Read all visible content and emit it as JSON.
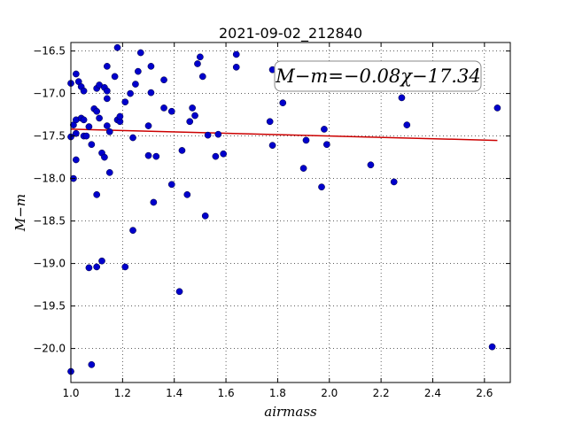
{
  "chart_data": {
    "type": "scatter",
    "title": "2021-09-02_212840",
    "xlabel": "airmass",
    "ylabel": "M−m",
    "annotation": "M−m=−0.08χ−17.34",
    "xlim": [
      1.0,
      2.7
    ],
    "ylim": [
      -20.4,
      -16.4
    ],
    "y_inverted": true,
    "grid": true,
    "x_ticks": [
      "1.0",
      "1.2",
      "1.4",
      "1.6",
      "1.8",
      "2.0",
      "2.2",
      "2.4",
      "2.6"
    ],
    "x_tick_values": [
      1.0,
      1.2,
      1.4,
      1.6,
      1.8,
      2.0,
      2.2,
      2.4,
      2.6
    ],
    "y_ticks": [
      "−16.5",
      "−17.0",
      "−17.5",
      "−18.0",
      "−18.5",
      "−19.0",
      "−19.5",
      "−20.0"
    ],
    "y_tick_values": [
      -16.5,
      -17.0,
      -17.5,
      -18.0,
      -18.5,
      -19.0,
      -19.5,
      -20.0
    ],
    "colors": {
      "points": "#0000cc",
      "fit": "#cc0000"
    },
    "fit": {
      "slope": -0.08,
      "intercept": -17.34,
      "x_range": [
        1.0,
        2.65
      ]
    },
    "points": [
      [
        1.0,
        -20.27
      ],
      [
        1.0,
        -17.51
      ],
      [
        1.0,
        -16.88
      ],
      [
        1.01,
        -17.37
      ],
      [
        1.01,
        -18.0
      ],
      [
        1.02,
        -17.31
      ],
      [
        1.02,
        -17.78
      ],
      [
        1.02,
        -16.77
      ],
      [
        1.03,
        -16.86
      ],
      [
        1.02,
        -17.47
      ],
      [
        1.04,
        -16.92
      ],
      [
        1.04,
        -17.29
      ],
      [
        1.05,
        -17.31
      ],
      [
        1.05,
        -16.97
      ],
      [
        1.05,
        -17.5
      ],
      [
        1.06,
        -17.5
      ],
      [
        1.07,
        -19.05
      ],
      [
        1.07,
        -17.39
      ],
      [
        1.08,
        -17.6
      ],
      [
        1.08,
        -20.19
      ],
      [
        1.09,
        -17.18
      ],
      [
        1.1,
        -17.21
      ],
      [
        1.1,
        -18.19
      ],
      [
        1.1,
        -16.94
      ],
      [
        1.1,
        -19.04
      ],
      [
        1.11,
        -16.9
      ],
      [
        1.11,
        -17.29
      ],
      [
        1.12,
        -17.7
      ],
      [
        1.12,
        -18.97
      ],
      [
        1.13,
        -17.75
      ],
      [
        1.13,
        -16.93
      ],
      [
        1.14,
        -16.97
      ],
      [
        1.14,
        -17.06
      ],
      [
        1.14,
        -17.38
      ],
      [
        1.15,
        -17.45
      ],
      [
        1.15,
        -17.93
      ],
      [
        1.14,
        -16.68
      ],
      [
        1.17,
        -16.8
      ],
      [
        1.18,
        -16.46
      ],
      [
        1.18,
        -17.31
      ],
      [
        1.19,
        -17.33
      ],
      [
        1.19,
        -17.27
      ],
      [
        1.21,
        -17.1
      ],
      [
        1.21,
        -19.04
      ],
      [
        1.23,
        -17.0
      ],
      [
        1.24,
        -17.52
      ],
      [
        1.24,
        -18.61
      ],
      [
        1.25,
        -16.89
      ],
      [
        1.26,
        -16.74
      ],
      [
        1.27,
        -16.52
      ],
      [
        1.3,
        -17.38
      ],
      [
        1.3,
        -17.73
      ],
      [
        1.31,
        -16.68
      ],
      [
        1.31,
        -16.99
      ],
      [
        1.32,
        -18.28
      ],
      [
        1.33,
        -17.74
      ],
      [
        1.36,
        -16.84
      ],
      [
        1.36,
        -17.17
      ],
      [
        1.39,
        -17.21
      ],
      [
        1.39,
        -18.07
      ],
      [
        1.42,
        -19.33
      ],
      [
        1.43,
        -17.67
      ],
      [
        1.45,
        -18.19
      ],
      [
        1.46,
        -17.33
      ],
      [
        1.47,
        -17.17
      ],
      [
        1.48,
        -17.26
      ],
      [
        1.49,
        -16.65
      ],
      [
        1.5,
        -16.57
      ],
      [
        1.51,
        -16.8
      ],
      [
        1.52,
        -18.44
      ],
      [
        1.53,
        -17.49
      ],
      [
        1.56,
        -17.74
      ],
      [
        1.57,
        -17.48
      ],
      [
        1.59,
        -17.71
      ],
      [
        1.64,
        -16.54
      ],
      [
        1.64,
        -16.69
      ],
      [
        1.77,
        -17.33
      ],
      [
        1.78,
        -17.61
      ],
      [
        1.78,
        -16.72
      ],
      [
        1.82,
        -17.11
      ],
      [
        1.9,
        -17.88
      ],
      [
        1.91,
        -17.55
      ],
      [
        1.97,
        -18.1
      ],
      [
        1.98,
        -17.42
      ],
      [
        1.99,
        -17.6
      ],
      [
        2.16,
        -17.84
      ],
      [
        2.25,
        -18.04
      ],
      [
        2.28,
        -17.05
      ],
      [
        2.3,
        -17.37
      ],
      [
        2.63,
        -19.98
      ],
      [
        2.65,
        -17.17
      ]
    ]
  }
}
